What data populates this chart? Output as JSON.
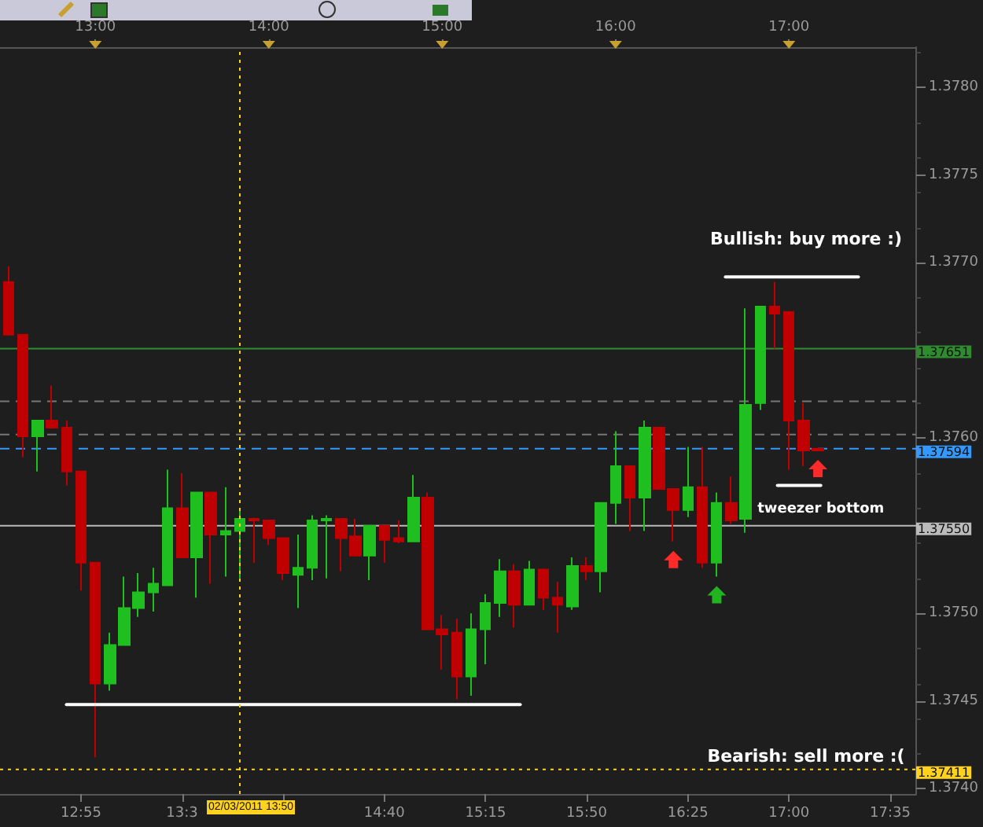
{
  "chart_data": {
    "type": "candlestick",
    "x": [
      "2011-03-02T12:30",
      "2011-03-02T12:35",
      "2011-03-02T12:40",
      "2011-03-02T12:45",
      "2011-03-02T12:50",
      "2011-03-02T12:55",
      "2011-03-02T13:00",
      "2011-03-02T13:05",
      "2011-03-02T13:10",
      "2011-03-02T13:15",
      "2011-03-02T13:20",
      "2011-03-02T13:25",
      "2011-03-02T13:30",
      "2011-03-02T13:35",
      "2011-03-02T13:40",
      "2011-03-02T13:45",
      "2011-03-02T13:50",
      "2011-03-02T13:55",
      "2011-03-02T14:00",
      "2011-03-02T14:05",
      "2011-03-02T14:10",
      "2011-03-02T14:15",
      "2011-03-02T14:20",
      "2011-03-02T14:25",
      "2011-03-02T14:30",
      "2011-03-02T14:35",
      "2011-03-02T14:40",
      "2011-03-02T14:45",
      "2011-03-02T14:50",
      "2011-03-02T14:55",
      "2011-03-02T15:00",
      "2011-03-02T15:05",
      "2011-03-02T15:10",
      "2011-03-02T15:15",
      "2011-03-02T15:20",
      "2011-03-02T15:25",
      "2011-03-02T15:30",
      "2011-03-02T15:35",
      "2011-03-02T15:40",
      "2011-03-02T15:45",
      "2011-03-02T15:50",
      "2011-03-02T15:55",
      "2011-03-02T16:00",
      "2011-03-02T16:05",
      "2011-03-02T16:10",
      "2011-03-02T16:15",
      "2011-03-02T16:20",
      "2011-03-02T16:25",
      "2011-03-02T16:30",
      "2011-03-02T16:35",
      "2011-03-02T16:40",
      "2011-03-02T16:45",
      "2011-03-02T16:50",
      "2011-03-02T16:55",
      "2011-03-02T17:00",
      "2011-03-02T17:05",
      "2011-03-02T17:10"
    ],
    "ohlc": [
      [
        1.37689,
        1.37698,
        1.37659,
        1.37659
      ],
      [
        1.37659,
        1.37659,
        1.37589,
        1.37601
      ],
      [
        1.37601,
        1.3761,
        1.37581,
        1.3761
      ],
      [
        1.3761,
        1.3763,
        1.37606,
        1.37606
      ],
      [
        1.37606,
        1.3761,
        1.37573,
        1.37581
      ],
      [
        1.37581,
        1.37581,
        1.37513,
        1.37529
      ],
      [
        1.37529,
        1.37529,
        1.37418,
        1.3746
      ],
      [
        1.3746,
        1.37489,
        1.37456,
        1.37482
      ],
      [
        1.37482,
        1.37521,
        1.37482,
        1.37503
      ],
      [
        1.37503,
        1.37523,
        1.37498,
        1.37512
      ],
      [
        1.37512,
        1.37526,
        1.37501,
        1.37517
      ],
      [
        1.37516,
        1.37582,
        1.37516,
        1.3756
      ],
      [
        1.3756,
        1.3758,
        1.37532,
        1.37532
      ],
      [
        1.37532,
        1.37569,
        1.37509,
        1.37569
      ],
      [
        1.37569,
        1.37569,
        1.37517,
        1.37545
      ],
      [
        1.37545,
        1.37572,
        1.37521,
        1.37547
      ],
      [
        1.37547,
        1.3756,
        1.3752,
        1.37554
      ],
      [
        1.37554,
        1.37554,
        1.37529,
        1.37553
      ],
      [
        1.37553,
        1.37553,
        1.37539,
        1.37543
      ],
      [
        1.37543,
        1.37543,
        1.37519,
        1.37523
      ],
      [
        1.37522,
        1.37545,
        1.37503,
        1.37526
      ],
      [
        1.37526,
        1.37556,
        1.37519,
        1.37553
      ],
      [
        1.37553,
        1.37556,
        1.3752,
        1.37554
      ],
      [
        1.37554,
        1.37554,
        1.37524,
        1.37543
      ],
      [
        1.37544,
        1.37554,
        1.37533,
        1.37533
      ],
      [
        1.37533,
        1.3755,
        1.37519,
        1.3755
      ],
      [
        1.3755,
        1.3755,
        1.37529,
        1.37542
      ],
      [
        1.37543,
        1.37553,
        1.3754,
        1.37541
      ],
      [
        1.37541,
        1.37579,
        1.37541,
        1.37566
      ],
      [
        1.37566,
        1.37569,
        1.37491,
        1.37491
      ],
      [
        1.37491,
        1.37499,
        1.37468,
        1.37488
      ],
      [
        1.37489,
        1.37497,
        1.37451,
        1.37464
      ],
      [
        1.37464,
        1.375,
        1.37453,
        1.37491
      ],
      [
        1.37491,
        1.37511,
        1.37471,
        1.37506
      ],
      [
        1.37506,
        1.37531,
        1.37498,
        1.37524
      ],
      [
        1.37524,
        1.37528,
        1.37492,
        1.37505
      ],
      [
        1.37505,
        1.3753,
        1.37505,
        1.37525
      ],
      [
        1.37525,
        1.37525,
        1.37502,
        1.37509
      ],
      [
        1.37509,
        1.37518,
        1.37489,
        1.37505
      ],
      [
        1.37504,
        1.37532,
        1.37502,
        1.37527
      ],
      [
        1.37527,
        1.37532,
        1.37519,
        1.37524
      ],
      [
        1.37524,
        1.37563,
        1.37512,
        1.37563
      ],
      [
        1.37563,
        1.37604,
        1.37551,
        1.37584
      ],
      [
        1.37584,
        1.37584,
        1.37547,
        1.37566
      ],
      [
        1.37566,
        1.3761,
        1.37547,
        1.37606
      ],
      [
        1.37606,
        1.37606,
        1.37571,
        1.37571
      ],
      [
        1.37571,
        1.37571,
        1.37541,
        1.37559
      ],
      [
        1.37559,
        1.37595,
        1.37555,
        1.37572
      ],
      [
        1.37572,
        1.37595,
        1.37526,
        1.37529
      ],
      [
        1.37529,
        1.37569,
        1.37521,
        1.37563
      ],
      [
        1.37563,
        1.37578,
        1.37551,
        1.37553
      ],
      [
        1.37554,
        1.37674,
        1.37546,
        1.37619
      ],
      [
        1.3762,
        1.37675,
        1.37616,
        1.37675
      ],
      [
        1.37675,
        1.37689,
        1.37651,
        1.37671
      ],
      [
        1.37672,
        1.37672,
        1.37582,
        1.3761
      ],
      [
        1.3761,
        1.3762,
        1.37584,
        1.37593
      ],
      [
        1.37594,
        1.37594,
        1.37593,
        1.37593
      ]
    ],
    "colors": [
      "#c00000",
      "#c00000",
      "#1fbf1f",
      "#c00000",
      "#c00000",
      "#c00000",
      "#c00000",
      "#1fbf1f",
      "#1fbf1f",
      "#1fbf1f",
      "#1fbf1f",
      "#1fbf1f",
      "#c00000",
      "#1fbf1f",
      "#c00000",
      "#1fbf1f",
      "#1fbf1f",
      "#c00000",
      "#c00000",
      "#c00000",
      "#1fbf1f",
      "#1fbf1f",
      "#1fbf1f",
      "#c00000",
      "#c00000",
      "#1fbf1f",
      "#c00000",
      "#c00000",
      "#1fbf1f",
      "#c00000",
      "#c00000",
      "#c00000",
      "#1fbf1f",
      "#1fbf1f",
      "#1fbf1f",
      "#c00000",
      "#1fbf1f",
      "#c00000",
      "#c00000",
      "#1fbf1f",
      "#c00000",
      "#1fbf1f",
      "#1fbf1f",
      "#c00000",
      "#1fbf1f",
      "#c00000",
      "#c00000",
      "#1fbf1f",
      "#c00000",
      "#1fbf1f",
      "#c00000",
      "#1fbf1f",
      "#1fbf1f",
      "#c00000",
      "#c00000",
      "#c00000",
      "#c00000"
    ],
    "series": [
      {
        "type": "line",
        "x": [
          "2011-03-02T12:50",
          "2011-03-02T15:27"
        ],
        "values": [
          1.37448,
          1.37448
        ],
        "color": "#ffffff"
      },
      {
        "type": "line",
        "x": [
          "2011-03-02T16:38",
          "2011-03-02T17:24"
        ],
        "values": [
          1.37692,
          1.37692
        ],
        "color": "#ffffff"
      },
      {
        "type": "line",
        "x": [
          "2011-03-02T16:56",
          "2011-03-02T17:11"
        ],
        "values": [
          1.37573,
          1.37573
        ],
        "color": "#ffffff"
      }
    ],
    "xlim": [
      "2011-03-02T12:27",
      "2011-03-02T17:44"
    ],
    "xticks": [
      {
        "value": "2011-03-02T12:55",
        "label": "12:55"
      },
      {
        "value": "2011-03-02T13:30",
        "label": "13:3"
      },
      {
        "value": "2011-03-02T14:05",
        "label": null
      },
      {
        "value": "2011-03-02T14:40",
        "label": "14:40"
      },
      {
        "value": "2011-03-02T15:15",
        "label": "15:15"
      },
      {
        "value": "2011-03-02T15:50",
        "label": "15:50"
      },
      {
        "value": "2011-03-02T16:25",
        "label": "16:25"
      },
      {
        "value": "2011-03-02T17:00",
        "label": "17:00"
      },
      {
        "value": "2011-03-02T17:35",
        "label": "17:35"
      }
    ],
    "x2lim": [
      "2011-03-02T12:27",
      "2011-03-02T17:44"
    ],
    "x2ticks": [
      {
        "value": "2011-03-02T13:00",
        "label": "13:00"
      },
      {
        "value": "2011-03-02T14:00",
        "label": "14:00"
      },
      {
        "value": "2011-03-02T15:00",
        "label": "15:00"
      },
      {
        "value": "2011-03-02T16:00",
        "label": "16:00"
      },
      {
        "value": "2011-03-02T17:00",
        "label": "17:00"
      }
    ],
    "ylim": [
      1.37397,
      1.37823
    ],
    "yticks": [
      {
        "value": 1.374,
        "label": "1.3740"
      },
      {
        "value": 1.3745,
        "label": "1.3745"
      },
      {
        "value": 1.375,
        "label": "1.3750"
      },
      {
        "value": 1.3755,
        "label": null
      },
      {
        "value": 1.376,
        "label": "1.3760"
      },
      {
        "value": 1.3765,
        "label": null
      },
      {
        "value": 1.377,
        "label": "1.3770"
      },
      {
        "value": 1.3775,
        "label": "1.3775"
      },
      {
        "value": 1.378,
        "label": "1.3780"
      }
    ],
    "grid": false,
    "ref_lines": [
      {
        "axis": "y",
        "value": 1.37651,
        "label": "1.37651",
        "color": "#2e8b2e",
        "line_style": "solid"
      },
      {
        "axis": "y",
        "value": 1.37621,
        "color": "#777777",
        "line_style": "dashed"
      },
      {
        "axis": "y",
        "value": 1.37602,
        "color": "#777777",
        "line_style": "dashed"
      },
      {
        "axis": "y",
        "value": 1.37594,
        "label": "1.37594",
        "color": "#3399ff",
        "line_style": "dashed"
      },
      {
        "axis": "y",
        "value": 1.3755,
        "label": "1.37550",
        "color": "#bbbbbb",
        "line_style": "solid"
      },
      {
        "axis": "y",
        "value": 1.37411,
        "label": "1.37411",
        "color": "#ffd21f",
        "line_style": "dotted"
      },
      {
        "axis": "x",
        "value": "2011-03-02T13:50",
        "label": "02/03/2011 13:50",
        "color": "#ffd21f",
        "line_style": "dotted"
      }
    ],
    "annotations": [
      "Bullish: buy more :)",
      "tweezer bottom",
      "Bearish: sell more :("
    ]
  }
}
